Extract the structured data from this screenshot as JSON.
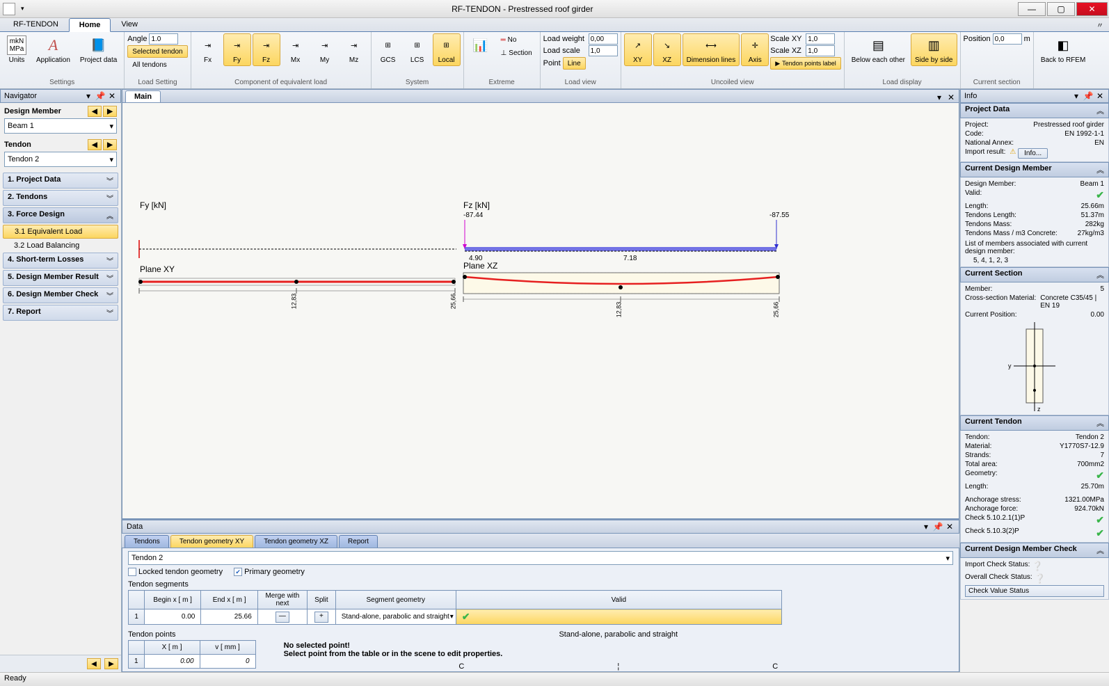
{
  "titlebar": {
    "app": "RF-TENDON",
    "doc": "Prestressed roof girder"
  },
  "ribbon_tabs": [
    "RF-TENDON",
    "Home",
    "View"
  ],
  "ribbon_tabs_active": 1,
  "ribbon": {
    "settings": {
      "label": "Settings",
      "buttons": [
        {
          "name": "units-btn",
          "label": "Units",
          "icon": "📏"
        },
        {
          "name": "application-btn",
          "label": "Application",
          "icon": "A"
        },
        {
          "name": "project-data-btn",
          "label": "Project data",
          "icon": "🗂"
        }
      ]
    },
    "load_setting": {
      "label": "Load Setting",
      "angle_label": "Angle",
      "angle_value": "1.0",
      "selected_tendon": "Selected tendon",
      "all_tendons": "All tendons"
    },
    "component": {
      "label": "Component of equivalent load",
      "buttons": [
        "Fx",
        "Fy",
        "Fz",
        "Mx",
        "My",
        "Mz"
      ],
      "active": [
        1,
        2
      ]
    },
    "system": {
      "label": "System",
      "buttons": [
        "GCS",
        "LCS",
        "Local"
      ],
      "active": 2
    },
    "extreme": {
      "label": "Extreme",
      "no": "No",
      "section": "Section"
    },
    "load_view": {
      "label": "Load view",
      "weight_label": "Load weight",
      "weight_value": "0,00",
      "scale_label": "Load scale",
      "scale_value": "1,0",
      "point_label": "Point",
      "line_label": "Line"
    },
    "uncoiled": {
      "label": "Uncoiled view",
      "buttons": [
        {
          "name": "xy-btn",
          "label": "XY",
          "active": true
        },
        {
          "name": "xz-btn",
          "label": "XZ",
          "active": true
        },
        {
          "name": "dimension-lines-btn",
          "label": "Dimension lines",
          "active": true
        },
        {
          "name": "axis-btn",
          "label": "Axis",
          "active": true
        }
      ],
      "scale_xy_label": "Scale XY",
      "scale_xy_value": "1,0",
      "scale_xz_label": "Scale XZ",
      "scale_xz_value": "1,0",
      "tendon_points_label": "Tendon points label"
    },
    "load_display": {
      "label": "Load display",
      "below": "Below each other",
      "side": "Side by side"
    },
    "current_section": {
      "label": "Current section",
      "position_label": "Position",
      "position_value": "0,0",
      "unit": "m"
    },
    "back_rfem": "Back to RFEM"
  },
  "navigator": {
    "title": "Navigator",
    "design_member_label": "Design Member",
    "design_member_value": "Beam 1",
    "tendon_label": "Tendon",
    "tendon_value": "Tendon 2",
    "items": [
      {
        "label": "1. Project Data",
        "expanded": false
      },
      {
        "label": "2. Tendons",
        "expanded": false
      },
      {
        "label": "3. Force Design",
        "expanded": true,
        "children": [
          {
            "label": "3.1 Equivalent Load",
            "selected": true
          },
          {
            "label": "3.2 Load Balancing",
            "selected": false
          }
        ]
      },
      {
        "label": "4. Short-term Losses",
        "expanded": false
      },
      {
        "label": "5. Design Member Result",
        "expanded": false
      },
      {
        "label": "6. Design Member Check",
        "expanded": false
      },
      {
        "label": "7. Report",
        "expanded": false
      }
    ]
  },
  "main": {
    "tab": "Main",
    "fy_label": "Fy [kN]",
    "fz_label": "Fz [kN]",
    "fz_left": "-87.44",
    "fz_right": "-87.55",
    "v1": "4.90",
    "v2": "7.18",
    "plane_xy": "Plane XY",
    "plane_xz": "Plane XZ",
    "dim_half": "12,83",
    "dim_full": "25,66"
  },
  "data": {
    "title": "Data",
    "tabs": [
      "Tendons",
      "Tendon geometry XY",
      "Tendon geometry XZ",
      "Report"
    ],
    "active_tab": 1,
    "tendon_select": "Tendon 2",
    "locked_label": "Locked tendon geometry",
    "locked_checked": false,
    "primary_label": "Primary geometry",
    "primary_checked": true,
    "segments_label": "Tendon segments",
    "seg_headers": [
      "",
      "Begin x  [ m ]",
      "End x  [ m ]",
      "Merge with next",
      "Split",
      "Segment geometry",
      "Valid"
    ],
    "seg_row": {
      "idx": "1",
      "begin": "0.00",
      "end": "25.66",
      "merge_icon": "—",
      "split_icon": "+",
      "geom": "Stand-alone, parabolic and straight",
      "valid": "✔"
    },
    "segment_echo": "Stand-alone, parabolic and straight",
    "points_label": "Tendon points",
    "pt_headers": [
      "",
      "X [ m ]",
      "v [ mm ]"
    ],
    "pt_row": {
      "idx": "1",
      "x": "0.00",
      "v": "0"
    },
    "no_sel": "No selected point!",
    "select_hint": "Select point from the table or in the scene to edit properties.",
    "c_label": "C"
  },
  "info": {
    "title": "Info",
    "project_data": {
      "title": "Project Data",
      "rows": [
        [
          "Project:",
          "Prestressed roof girder"
        ],
        [
          "Code:",
          "EN 1992-1-1"
        ],
        [
          "National Annex:",
          "EN"
        ]
      ],
      "import_label": "Import result:",
      "info_btn": "Info..."
    },
    "current_dm": {
      "title": "Current Design Member",
      "rows": [
        [
          "Design Member:",
          "Beam 1"
        ],
        [
          "Valid:",
          "✔"
        ],
        [
          "Length:",
          "25.66m"
        ],
        [
          "Tendons Length:",
          "51.37m"
        ],
        [
          "Tendons Mass:",
          "282kg"
        ],
        [
          "Tendons Mass / m3 Concrete:",
          "27kg/m3"
        ]
      ],
      "assoc_label": "List of members associated with current design member:",
      "assoc_members": "5, 4, 1, 2, 3"
    },
    "current_section": {
      "title": "Current Section",
      "rows": [
        [
          "Member:",
          "5"
        ],
        [
          "Cross-section Material:",
          "Concrete C35/45 | EN 19"
        ],
        [
          "Current Position:",
          "0.00"
        ]
      ]
    },
    "current_tendon": {
      "title": "Current Tendon",
      "rows": [
        [
          "Tendon:",
          "Tendon 2"
        ],
        [
          "Material:",
          "Y1770S7-12.9"
        ],
        [
          "Strands:",
          "7"
        ],
        [
          "Total area:",
          "700mm2"
        ],
        [
          "Geometry:",
          "✔"
        ],
        [
          "Length:",
          "25.70m"
        ]
      ],
      "rows2": [
        [
          "Anchorage stress:",
          "1321.00MPa"
        ],
        [
          "Anchorage force:",
          "924.70kN"
        ],
        [
          "Check 5.10.2.1(1)P",
          "✔"
        ],
        [
          "Check 5.10.3(2)P",
          "✔"
        ]
      ]
    },
    "dm_check": {
      "title": "Current Design Member Check",
      "import_status": "Import Check Status:",
      "overall_status": "Overall Check Status:",
      "check_value": "Check Value Status"
    }
  },
  "status": "Ready",
  "colors": {
    "accent_yellow": "#fcd660",
    "accent_blue": "#5a7fb0",
    "green": "#3ab54a",
    "red_line": "#e62020",
    "blue_bar": "#5050e0"
  }
}
